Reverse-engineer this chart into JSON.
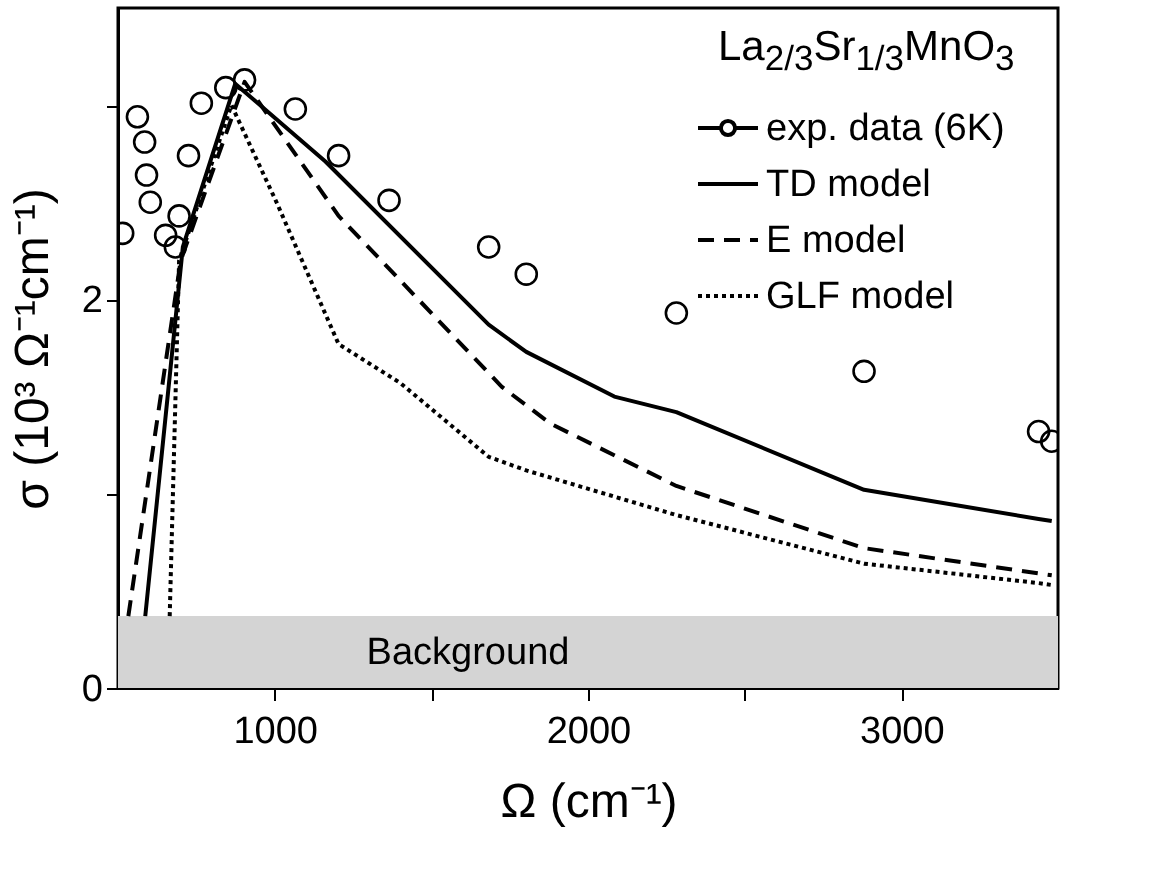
{
  "chart_data": {
    "type": "line",
    "xlabel": "Ω (cm⁻¹)",
    "ylabel": "σ (10³ Ω⁻¹cm⁻¹)",
    "legend_title": "La$_{2/3}$Sr$_{1/3}$MnO$_{3}$",
    "xlim": [
      500,
      3500
    ],
    "xticks": [
      1000,
      {
        "value": 1500,
        "label": null
      },
      2000,
      {
        "value": 2500,
        "label": null
      },
      3000
    ],
    "ylim": [
      0,
      3.5
    ],
    "yticks": [
      0,
      {
        "value": 1,
        "label": null
      },
      2,
      {
        "value": 3,
        "label": null
      }
    ],
    "grid": false,
    "legend": "top right",
    "bands": [
      {
        "axis": "y",
        "from": 0,
        "to": 0.37,
        "label": "Background",
        "color": "#d4d4d4"
      }
    ],
    "series": [
      {
        "name": "exp. data (6K)",
        "type": "scatter",
        "marker": "circle",
        "color": "#000000",
        "x": [
          515,
          562,
          585,
          591,
          603,
          652,
          683,
          695,
          725,
          766,
          844,
          904,
          1066,
          1204,
          1365,
          1683,
          1803,
          2282,
          2881,
          3438,
          3480
        ],
        "values": [
          2.34,
          2.94,
          2.81,
          2.64,
          2.5,
          2.33,
          2.27,
          2.43,
          2.74,
          3.01,
          3.09,
          3.13,
          2.98,
          2.74,
          2.51,
          2.27,
          2.13,
          1.93,
          1.63,
          1.32,
          1.27
        ]
      },
      {
        "name": "TD model",
        "line_style": "solid",
        "color": "#000000",
        "x": [
          587,
          707,
          874,
          1162,
          1683,
          1803,
          2084,
          2282,
          2881,
          3438,
          3480
        ],
        "values": [
          0.37,
          2.27,
          3.11,
          2.71,
          1.87,
          1.73,
          1.5,
          1.42,
          1.02,
          0.87,
          0.86
        ]
      },
      {
        "name": "E model",
        "line_style": "dashed",
        "color": "#000000",
        "x": [
          533,
          700,
          904,
          1204,
          1725,
          1881,
          2282,
          2881,
          3438,
          3480
        ],
        "values": [
          0.37,
          2.2,
          3.12,
          2.43,
          1.55,
          1.36,
          1.04,
          0.72,
          0.59,
          0.58
        ]
      },
      {
        "name": "GLF model",
        "line_style": "dotted",
        "color": "#000000",
        "x": [
          665,
          695,
          862,
          1006,
          1204,
          1401,
          1683,
          1803,
          2282,
          2881,
          3438,
          3480
        ],
        "values": [
          0.37,
          2.2,
          3.0,
          2.5,
          1.77,
          1.57,
          1.19,
          1.12,
          0.89,
          0.64,
          0.54,
          0.53
        ]
      }
    ]
  }
}
